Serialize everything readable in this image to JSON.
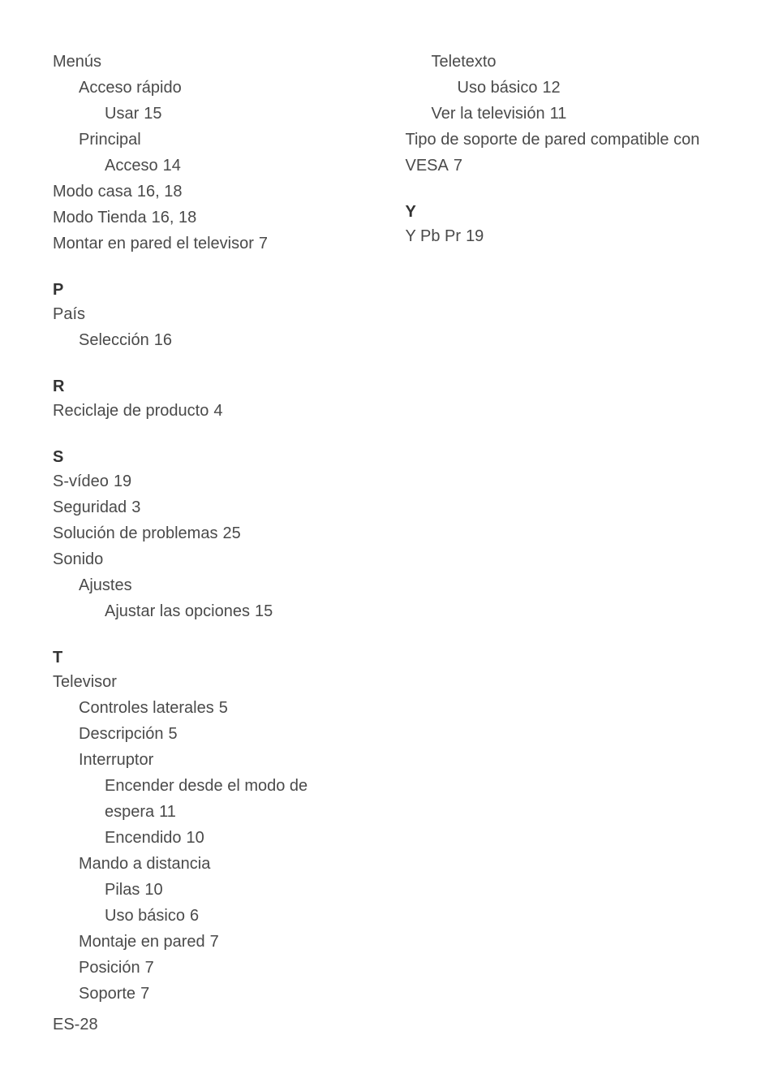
{
  "left": {
    "m": [
      {
        "text": "Menús",
        "lvl": 0
      },
      {
        "text": "Acceso rápido",
        "lvl": 1
      },
      {
        "text": "Usar",
        "page": "15",
        "lvl": 2
      },
      {
        "text": "Principal",
        "lvl": 1
      },
      {
        "text": "Acceso",
        "page": "14",
        "lvl": 2
      },
      {
        "text": "Modo casa",
        "page": "16, 18",
        "lvl": 0
      },
      {
        "text": "Modo Tienda",
        "page": "16, 18",
        "lvl": 0
      },
      {
        "text": "Montar en pared el televisor",
        "page": "7",
        "lvl": 0
      }
    ],
    "p_head": "P",
    "p": [
      {
        "text": "País",
        "lvl": 0
      },
      {
        "text": "Selección",
        "page": "16",
        "lvl": 1
      }
    ],
    "r_head": "R",
    "r": [
      {
        "text": "Reciclaje de producto",
        "page": "4",
        "lvl": 0
      }
    ],
    "s_head": "S",
    "s": [
      {
        "text": "S-vídeo",
        "page": "19",
        "lvl": 0
      },
      {
        "text": "Seguridad",
        "page": "3",
        "lvl": 0
      },
      {
        "text": "Solución de problemas",
        "page": "25",
        "lvl": 0
      },
      {
        "text": "Sonido",
        "lvl": 0
      },
      {
        "text": "Ajustes",
        "lvl": 1
      },
      {
        "text": "Ajustar las opciones",
        "page": "15",
        "lvl": 2
      }
    ],
    "t_head": "T",
    "t": [
      {
        "text": "Televisor",
        "lvl": 0
      },
      {
        "text": "Controles laterales",
        "page": "5",
        "lvl": 1
      },
      {
        "text": "Descripción",
        "page": "5",
        "lvl": 1
      },
      {
        "text": "Interruptor",
        "lvl": 1
      },
      {
        "text": "Encender desde el modo de espera",
        "page": "11",
        "lvl": 2
      },
      {
        "text": "Encendido",
        "page": "10",
        "lvl": 2
      },
      {
        "text": "Mando a distancia",
        "lvl": 1
      },
      {
        "text": "Pilas",
        "page": "10",
        "lvl": 2
      },
      {
        "text": "Uso básico",
        "page": "6",
        "lvl": 2
      },
      {
        "text": "Montaje en pared",
        "page": "7",
        "lvl": 1
      },
      {
        "text": "Posición",
        "page": "7",
        "lvl": 1
      },
      {
        "text": "Soporte",
        "page": "7",
        "lvl": 1
      }
    ]
  },
  "right": {
    "top": [
      {
        "text": "Teletexto",
        "lvl": 1
      },
      {
        "text": "Uso básico",
        "page": "12",
        "lvl": 2
      },
      {
        "text": "Ver la televisión",
        "page": "11",
        "lvl": 1
      },
      {
        "text": "Tipo de soporte de pared compatible con VESA",
        "page": "7",
        "lvl": 0
      }
    ],
    "y_head": "Y",
    "y": [
      {
        "text": "Y Pb Pr",
        "page": "19",
        "lvl": 0
      }
    ]
  },
  "footer": "ES-28"
}
